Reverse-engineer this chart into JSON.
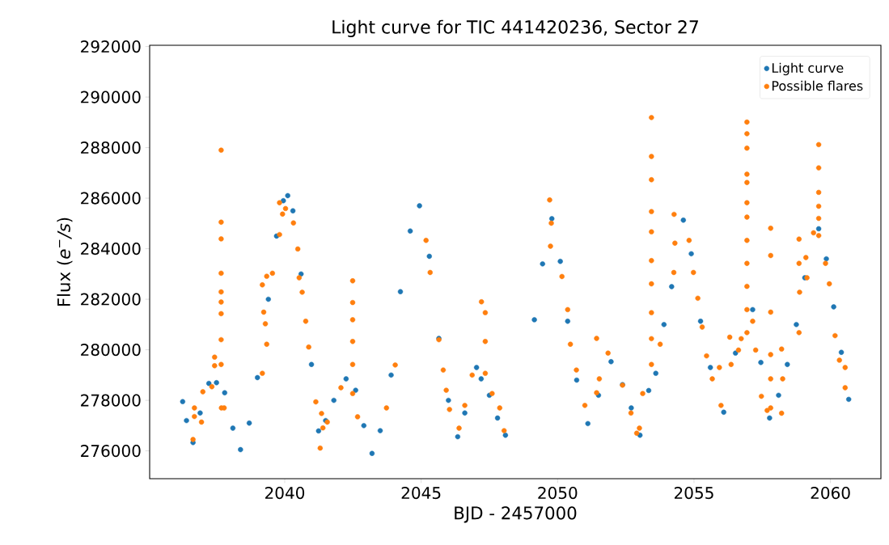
{
  "chart_data": {
    "type": "scatter",
    "title": "Light curve for TIC 441420236, Sector 27",
    "xlabel": "BJD - 2457000",
    "ylabel": "Flux (*e*$^{−}$*/s*)",
    "xlim": [
      2035.05,
      2061.85
    ],
    "ylim": [
      274900,
      292050
    ],
    "xticks": [
      2040,
      2045,
      2050,
      2055,
      2060
    ],
    "yticks": [
      276000,
      278000,
      280000,
      282000,
      284000,
      286000,
      288000,
      290000,
      292000
    ],
    "legend": "top right",
    "marker": "circle",
    "series": [
      {
        "name": "Light curve",
        "color": "#1f77b4",
        "x": [
          2036.26,
          2036.4,
          2036.64,
          2036.9,
          2037.22,
          2037.5,
          2037.8,
          2038.1,
          2038.38,
          2038.7,
          2039.0,
          2039.4,
          2039.7,
          2039.95,
          2040.11,
          2040.3,
          2040.6,
          2040.98,
          2041.24,
          2041.5,
          2041.8,
          2042.25,
          2042.6,
          2042.9,
          2043.2,
          2043.5,
          2043.9,
          2044.24,
          2044.6,
          2044.94,
          2045.3,
          2045.65,
          2046.0,
          2046.34,
          2046.6,
          2047.03,
          2047.2,
          2047.5,
          2047.8,
          2048.09,
          2049.15,
          2049.45,
          2049.79,
          2050.1,
          2050.37,
          2050.7,
          2051.11,
          2051.5,
          2051.96,
          2052.38,
          2052.7,
          2053.02,
          2053.34,
          2053.6,
          2053.9,
          2054.18,
          2054.61,
          2054.9,
          2055.24,
          2055.6,
          2056.09,
          2056.52,
          2057.15,
          2057.45,
          2057.77,
          2058.1,
          2058.42,
          2058.75,
          2059.06,
          2059.57,
          2059.85,
          2060.12,
          2060.4,
          2060.67
        ],
        "values": [
          277950,
          277200,
          276330,
          277500,
          278670,
          278700,
          278300,
          276900,
          276050,
          277100,
          278900,
          282000,
          284500,
          285900,
          286100,
          285500,
          283000,
          279420,
          276790,
          277200,
          278000,
          278850,
          278400,
          277000,
          275900,
          276800,
          279000,
          282300,
          284700,
          285700,
          283700,
          280450,
          278000,
          276560,
          277500,
          279300,
          278850,
          278200,
          277300,
          276620,
          281190,
          283400,
          285190,
          283500,
          281130,
          278800,
          277080,
          278200,
          279530,
          278620,
          277700,
          276620,
          278390,
          279070,
          281000,
          282500,
          285130,
          283800,
          281130,
          279300,
          277530,
          279870,
          281590,
          279500,
          277300,
          278200,
          279420,
          281000,
          282850,
          284790,
          283600,
          281700,
          279900,
          278040
        ]
      },
      {
        "name": "Possible flares",
        "color": "#ff7f0e",
        "x": [
          2036.69,
          2036.69,
          2036.64,
          2037.0,
          2036.95,
          2037.43,
          2037.43,
          2037.33,
          2037.68,
          2037.78,
          2037.67,
          2037.67,
          2037.67,
          2037.67,
          2037.67,
          2037.67,
          2037.67,
          2037.67,
          2037.67,
          2039.81,
          2040.03,
          2039.81,
          2039.92,
          2040.32,
          2040.48,
          2040.53,
          2040.64,
          2040.77,
          2040.88,
          2039.18,
          2039.34,
          2039.55,
          2039.23,
          2039.29,
          2039.34,
          2039.18,
          2041.14,
          2041.3,
          2041.4,
          2041.56,
          2041.35,
          2042.49,
          2042.49,
          2042.49,
          2042.49,
          2042.49,
          2042.49,
          2042.06,
          2042.67,
          2043.73,
          2044.05,
          2045.18,
          2045.33,
          2045.65,
          2045.81,
          2045.92,
          2046.04,
          2046.39,
          2046.6,
          2046.87,
          2047.21,
          2047.35,
          2047.35,
          2047.35,
          2047.6,
          2047.88,
          2048.04,
          2049.71,
          2049.77,
          2049.74,
          2050.16,
          2050.37,
          2050.47,
          2050.69,
          2051.0,
          2051.43,
          2051.53,
          2051.85,
          2051.43,
          2052.38,
          2052.69,
          2052.9,
          2053.44,
          2053.44,
          2053.44,
          2053.44,
          2053.44,
          2053.44,
          2053.44,
          2053.44,
          2053.44,
          2053.44,
          2053.12,
          2053.0,
          2053.76,
          2054.27,
          2054.3,
          2054.26,
          2054.82,
          2054.98,
          2055.14,
          2055.3,
          2055.46,
          2055.67,
          2055.93,
          2055.99,
          2056.31,
          2056.36,
          2056.63,
          2056.73,
          2056.94,
          2056.94,
          2056.94,
          2056.94,
          2056.94,
          2056.94,
          2056.94,
          2056.94,
          2056.94,
          2056.94,
          2056.94,
          2056.94,
          2057.15,
          2057.26,
          2057.47,
          2057.68,
          2057.81,
          2057.81,
          2057.81,
          2057.81,
          2057.81,
          2057.81,
          2058.21,
          2058.21,
          2058.25,
          2058.85,
          2058.85,
          2058.87,
          2058.85,
          2059.1,
          2059.14,
          2059.57,
          2059.57,
          2059.57,
          2059.57,
          2059.57,
          2059.57,
          2059.38,
          2059.82,
          2059.96,
          2060.17,
          2060.33,
          2060.54,
          2060.54
        ],
        "values": [
          277700,
          277360,
          276450,
          278340,
          277140,
          279710,
          279370,
          278540,
          277700,
          277700,
          287900,
          285050,
          284390,
          283030,
          282290,
          281890,
          281430,
          280400,
          279420,
          285820,
          285590,
          284560,
          285370,
          285020,
          283990,
          282850,
          282280,
          281130,
          280110,
          282570,
          282910,
          283030,
          281490,
          281030,
          280220,
          279070,
          277940,
          276110,
          276910,
          277140,
          277480,
          282730,
          281870,
          281190,
          280330,
          279420,
          278270,
          278500,
          277350,
          277700,
          279400,
          284330,
          283060,
          280400,
          279200,
          278400,
          277640,
          276900,
          277800,
          279000,
          281900,
          281470,
          280330,
          279070,
          278270,
          277700,
          276800,
          285930,
          285010,
          284100,
          282900,
          281590,
          280220,
          279200,
          277800,
          280450,
          278850,
          279870,
          278300,
          278600,
          277500,
          276700,
          289190,
          287650,
          286730,
          285470,
          284670,
          283530,
          282610,
          281470,
          280440,
          279420,
          278270,
          276900,
          280220,
          285360,
          284220,
          283060,
          284330,
          283060,
          282040,
          280900,
          279760,
          278850,
          279300,
          277800,
          280500,
          279420,
          279990,
          280440,
          289010,
          288550,
          287980,
          286950,
          286620,
          285820,
          285250,
          284330,
          283420,
          282510,
          281590,
          280680,
          281130,
          279990,
          278160,
          277600,
          284810,
          283730,
          281490,
          279810,
          278850,
          277700,
          280030,
          277490,
          278850,
          284380,
          283420,
          282280,
          280680,
          283650,
          282850,
          288120,
          287200,
          286230,
          285680,
          285200,
          284520,
          284630,
          283420,
          282610,
          280560,
          279590,
          279300,
          278500
        ]
      }
    ]
  }
}
